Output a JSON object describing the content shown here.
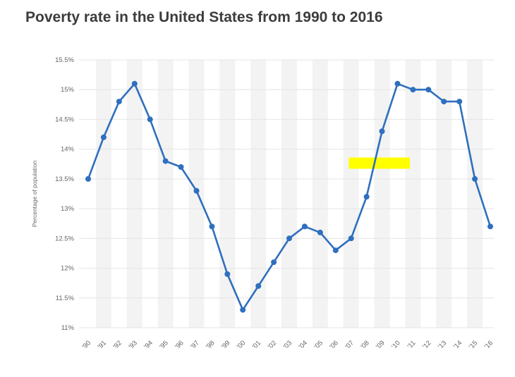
{
  "chart_data": {
    "type": "line",
    "title": "Poverty rate in the United States from 1990 to 2016",
    "ylabel": "Percentage of population",
    "xlabel": "",
    "categories": [
      "'90",
      "'91",
      "'92",
      "'93",
      "'94",
      "'95",
      "'96",
      "'97",
      "'98",
      "'99",
      "'00",
      "'01",
      "'02",
      "'03",
      "'04",
      "'05",
      "'06",
      "'07",
      "'08",
      "'09",
      "'10",
      "'11",
      "'12",
      "'13",
      "'14",
      "'15",
      "'16"
    ],
    "values": [
      13.5,
      14.2,
      14.8,
      15.1,
      14.5,
      13.8,
      13.7,
      13.3,
      12.7,
      11.9,
      11.3,
      11.7,
      12.1,
      12.5,
      12.7,
      12.6,
      12.3,
      12.5,
      13.2,
      14.3,
      15.1,
      15.0,
      15.0,
      14.8,
      14.8,
      13.5,
      12.7
    ],
    "ylim": [
      11,
      15.5
    ],
    "ytick_step": 0.5,
    "ytick_labels": [
      "11%",
      "11.5%",
      "12%",
      "12.5%",
      "13%",
      "13.5%",
      "14%",
      "14.5%",
      "15%",
      "15.5%"
    ],
    "grid": true,
    "legend": "none",
    "colors": {
      "line": "#2e6fbe",
      "marker": "#2e6fbe",
      "grid_line": "#e4e4e4",
      "column_stripe": "#f3f3f3",
      "axis_text": "#666666",
      "highlight": "#ffff00"
    },
    "annotations": {
      "highlight": {
        "type": "highlight-rect",
        "color": "#ffff00",
        "x_start_index": 16.85,
        "x_end_index": 20.8,
        "y_low": 13.67,
        "y_high": 13.86,
        "near_years": [
          "'07",
          "'10"
        ],
        "near_value": 13.8
      }
    }
  }
}
